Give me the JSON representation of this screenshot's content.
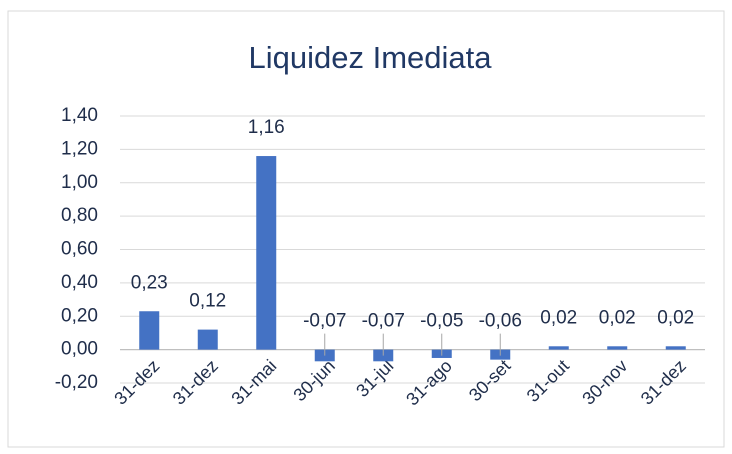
{
  "chart_data": {
    "type": "bar",
    "title": "Liquidez Imediata",
    "categories": [
      "31-dez",
      "31-dez",
      "31-mai",
      "30-jun",
      "31-jul",
      "31-ago",
      "30-set",
      "31-out",
      "30-nov",
      "31-dez"
    ],
    "values": [
      0.23,
      0.12,
      1.16,
      -0.07,
      -0.07,
      -0.05,
      -0.06,
      0.02,
      0.02,
      0.02
    ],
    "value_labels": [
      "0,23",
      "0,12",
      "1,16",
      "-0,07",
      "-0,07",
      "-0,05",
      "-0,06",
      "0,02",
      "0,02",
      "0,02"
    ],
    "color": "#4472c4",
    "ylim": [
      -0.2,
      1.4
    ],
    "yticks": [
      {
        "value": -0.2,
        "label": "-0,20"
      },
      {
        "value": 0,
        "label": "0,00"
      },
      {
        "value": 0.2,
        "label": "0,20"
      },
      {
        "value": 0.4,
        "label": "0,40"
      },
      {
        "value": 0.6,
        "label": "0,60"
      },
      {
        "value": 0.8,
        "label": "0,80"
      },
      {
        "value": 1.0,
        "label": "1,00"
      },
      {
        "value": 1.2,
        "label": "1,20"
      },
      {
        "value": 1.4,
        "label": "1,40"
      }
    ],
    "grid": true
  }
}
